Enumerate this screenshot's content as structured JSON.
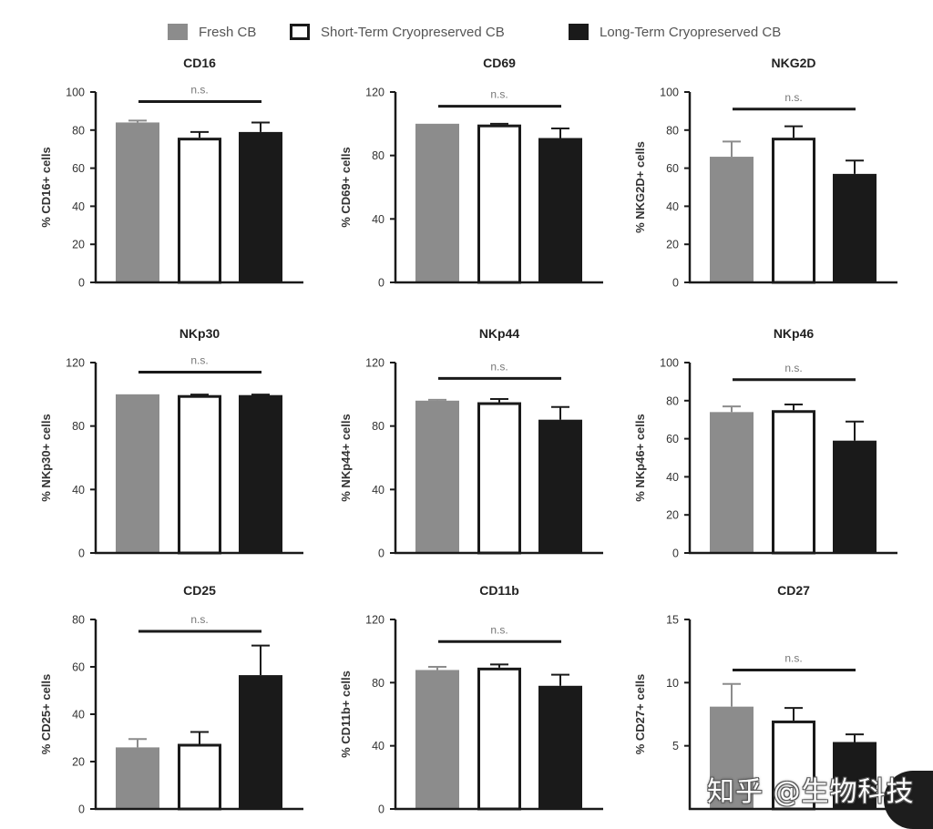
{
  "legend": [
    {
      "label": "Fresh CB",
      "fill": "#8c8c8c",
      "stroke": "#8c8c8c"
    },
    {
      "label": "Short-Term Cryopreserved CB",
      "fill": "#ffffff",
      "stroke": "#1a1a1a"
    },
    {
      "label": "Long-Term Cryopreserved CB",
      "fill": "#1a1a1a",
      "stroke": "#1a1a1a"
    }
  ],
  "watermark": "知乎 @生物科技",
  "chart_data": [
    {
      "type": "bar",
      "title": "CD16",
      "ylabel": "% CD16+ cells",
      "ylim": [
        0,
        100
      ],
      "yticks": [
        0,
        20,
        40,
        60,
        80,
        100
      ],
      "categories": [
        "Fresh CB",
        "Short-Term Cryopreserved CB",
        "Long-Term Cryopreserved CB"
      ],
      "values": [
        84,
        76,
        79
      ],
      "errors": [
        1,
        3,
        5
      ],
      "annotation": "n.s.",
      "sig_y": 95
    },
    {
      "type": "bar",
      "title": "CD69",
      "ylabel": "% CD69+ cells",
      "ylim": [
        0,
        120
      ],
      "yticks": [
        0,
        40,
        80,
        120
      ],
      "categories": [
        "Fresh CB",
        "Short-Term Cryopreserved CB",
        "Long-Term Cryopreserved CB"
      ],
      "values": [
        100,
        99.5,
        91
      ],
      "errors": [
        0,
        0.5,
        6
      ],
      "annotation": "n.s.",
      "sig_y": 111
    },
    {
      "type": "bar",
      "title": "NKG2D",
      "ylabel": "% NKG2D+ cells",
      "ylim": [
        0,
        100
      ],
      "yticks": [
        0,
        20,
        40,
        60,
        80,
        100
      ],
      "categories": [
        "Fresh CB",
        "Short-Term Cryopreserved CB",
        "Long-Term Cryopreserved CB"
      ],
      "values": [
        66,
        76,
        57
      ],
      "errors": [
        8,
        6,
        7
      ],
      "annotation": "n.s.",
      "sig_y": 91
    },
    {
      "type": "bar",
      "title": "NKp30",
      "ylabel": "% NKp30+ cells",
      "ylim": [
        0,
        120
      ],
      "yticks": [
        0,
        40,
        80,
        120
      ],
      "categories": [
        "Fresh CB",
        "Short-Term Cryopreserved CB",
        "Long-Term Cryopreserved CB"
      ],
      "values": [
        100,
        99.5,
        99.5
      ],
      "errors": [
        0,
        0.3,
        0.3
      ],
      "annotation": "n.s.",
      "sig_y": 114
    },
    {
      "type": "bar",
      "title": "NKp44",
      "ylabel": "% NKp44+ cells",
      "ylim": [
        0,
        120
      ],
      "yticks": [
        0,
        40,
        80,
        120
      ],
      "categories": [
        "Fresh CB",
        "Short-Term Cryopreserved CB",
        "Long-Term Cryopreserved CB"
      ],
      "values": [
        96,
        95,
        84
      ],
      "errors": [
        0.5,
        2,
        8
      ],
      "annotation": "n.s.",
      "sig_y": 110
    },
    {
      "type": "bar",
      "title": "NKp46",
      "ylabel": "% NKp46+ cells",
      "ylim": [
        0,
        100
      ],
      "yticks": [
        0,
        20,
        40,
        60,
        80,
        100
      ],
      "categories": [
        "Fresh CB",
        "Short-Term Cryopreserved CB",
        "Long-Term Cryopreserved CB"
      ],
      "values": [
        74,
        75,
        59
      ],
      "errors": [
        3,
        3,
        10
      ],
      "annotation": "n.s.",
      "sig_y": 91
    },
    {
      "type": "bar",
      "title": "CD25",
      "ylabel": "% CD25+ cells",
      "ylim": [
        0,
        80
      ],
      "yticks": [
        0,
        20,
        40,
        60,
        80
      ],
      "categories": [
        "Fresh CB",
        "Short-Term Cryopreserved CB",
        "Long-Term Cryopreserved CB"
      ],
      "values": [
        26,
        27.5,
        56.5
      ],
      "errors": [
        3.5,
        5,
        12.5
      ],
      "annotation": "n.s.",
      "sig_y": 75
    },
    {
      "type": "bar",
      "title": "CD11b",
      "ylabel": "% CD11b+ cells",
      "ylim": [
        0,
        120
      ],
      "yticks": [
        0,
        40,
        80,
        120
      ],
      "categories": [
        "Fresh CB",
        "Short-Term Cryopreserved CB",
        "Long-Term Cryopreserved CB"
      ],
      "values": [
        88,
        89.5,
        78
      ],
      "errors": [
        2,
        2,
        7
      ],
      "annotation": "n.s.",
      "sig_y": 106
    },
    {
      "type": "bar",
      "title": "CD27",
      "ylabel": "% CD27+ cells",
      "ylim": [
        0,
        15
      ],
      "yticks": [
        5,
        10,
        15
      ],
      "categories": [
        "Fresh CB",
        "Short-Term Cryopreserved CB",
        "Long-Term Cryopreserved CB"
      ],
      "values": [
        8.1,
        7,
        5.3
      ],
      "errors": [
        1.8,
        1,
        0.6
      ],
      "annotation": "n.s.",
      "sig_y": 11
    }
  ]
}
